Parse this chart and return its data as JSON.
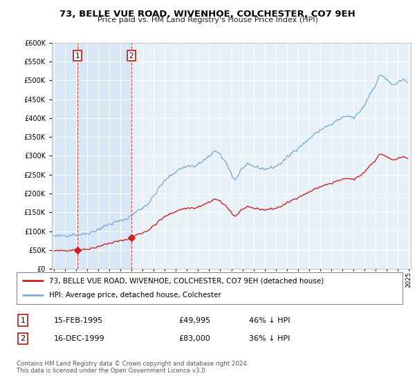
{
  "title": "73, BELLE VUE ROAD, WIVENHOE, COLCHESTER, CO7 9EH",
  "subtitle": "Price paid vs. HM Land Registry's House Price Index (HPI)",
  "legend_line1": "73, BELLE VUE ROAD, WIVENHOE, COLCHESTER, CO7 9EH (detached house)",
  "legend_line2": "HPI: Average price, detached house, Colchester",
  "footer": "Contains HM Land Registry data © Crown copyright and database right 2024.\nThis data is licensed under the Open Government Licence v3.0.",
  "sale1_label": "1",
  "sale1_date": "15-FEB-1995",
  "sale1_price": "£49,995",
  "sale1_hpi": "46% ↓ HPI",
  "sale2_label": "2",
  "sale2_date": "16-DEC-1999",
  "sale2_price": "£83,000",
  "sale2_hpi": "36% ↓ HPI",
  "sale1_x": 1995.12,
  "sale1_y": 49995,
  "sale2_x": 1999.96,
  "sale2_y": 83000,
  "ylim": [
    0,
    600000
  ],
  "xlim_start": 1992.8,
  "xlim_end": 2025.2,
  "hpi_color": "#7aaed6",
  "sale_color": "#cc2222",
  "shade_color": "#dde8f5",
  "background_color": "#ddeeff",
  "grid_color": "#cccccc"
}
